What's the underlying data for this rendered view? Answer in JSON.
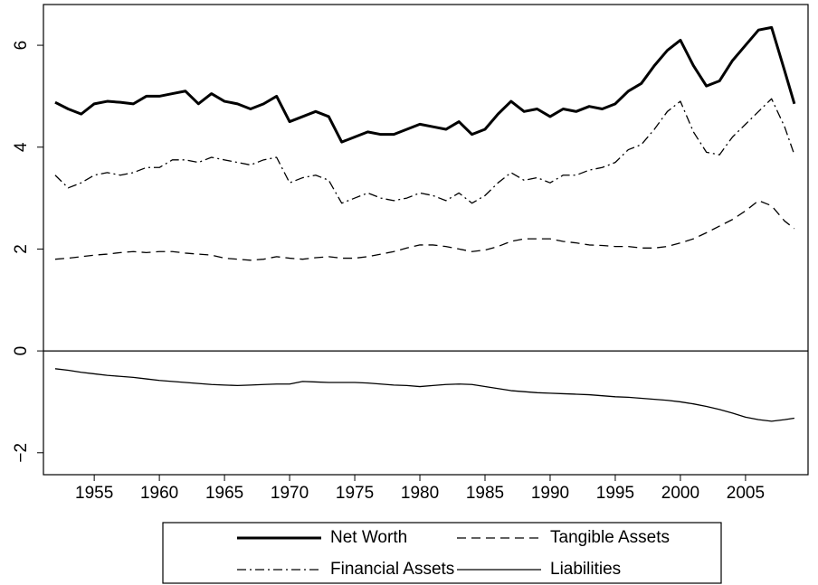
{
  "chart_data": {
    "type": "line",
    "x": [
      1952,
      1953,
      1954,
      1955,
      1956,
      1957,
      1958,
      1959,
      1960,
      1961,
      1962,
      1963,
      1964,
      1965,
      1966,
      1967,
      1968,
      1969,
      1970,
      1971,
      1972,
      1973,
      1974,
      1975,
      1976,
      1977,
      1978,
      1979,
      1980,
      1981,
      1982,
      1983,
      1984,
      1985,
      1986,
      1987,
      1988,
      1989,
      1990,
      1991,
      1992,
      1993,
      1994,
      1995,
      1996,
      1997,
      1998,
      1999,
      2000,
      2001,
      2002,
      2003,
      2004,
      2005,
      2006,
      2007,
      2008,
      2008.75
    ],
    "series": [
      {
        "name": "Net Worth",
        "color": "#000000",
        "dash": "solid",
        "width": 3,
        "values": [
          4.88,
          4.75,
          4.65,
          4.85,
          4.9,
          4.88,
          4.85,
          5.0,
          5.0,
          5.05,
          5.1,
          4.85,
          5.05,
          4.9,
          4.85,
          4.75,
          4.85,
          5.0,
          4.5,
          4.6,
          4.7,
          4.6,
          4.1,
          4.2,
          4.3,
          4.25,
          4.25,
          4.35,
          4.45,
          4.4,
          4.35,
          4.5,
          4.25,
          4.35,
          4.65,
          4.9,
          4.7,
          4.75,
          4.6,
          4.75,
          4.7,
          4.8,
          4.75,
          4.85,
          5.1,
          5.25,
          5.6,
          5.9,
          6.1,
          5.6,
          5.2,
          5.3,
          5.7,
          6.0,
          6.3,
          6.35,
          5.5,
          4.85
        ]
      },
      {
        "name": "Tangible Assets",
        "color": "#000000",
        "dash": "dashed",
        "width": 1.3,
        "values": [
          1.8,
          1.82,
          1.85,
          1.88,
          1.9,
          1.93,
          1.95,
          1.93,
          1.95,
          1.95,
          1.92,
          1.9,
          1.88,
          1.82,
          1.8,
          1.78,
          1.8,
          1.85,
          1.82,
          1.8,
          1.83,
          1.85,
          1.82,
          1.82,
          1.85,
          1.9,
          1.95,
          2.02,
          2.08,
          2.08,
          2.05,
          2.0,
          1.95,
          1.98,
          2.05,
          2.15,
          2.2,
          2.2,
          2.2,
          2.15,
          2.12,
          2.08,
          2.07,
          2.05,
          2.05,
          2.02,
          2.02,
          2.05,
          2.12,
          2.2,
          2.32,
          2.45,
          2.58,
          2.75,
          2.95,
          2.85,
          2.55,
          2.4
        ]
      },
      {
        "name": "Financial Assets",
        "color": "#000000",
        "dash": "dashdot",
        "width": 1.3,
        "values": [
          3.45,
          3.2,
          3.3,
          3.45,
          3.5,
          3.45,
          3.5,
          3.6,
          3.6,
          3.75,
          3.75,
          3.7,
          3.8,
          3.75,
          3.7,
          3.65,
          3.75,
          3.8,
          3.3,
          3.4,
          3.45,
          3.35,
          2.9,
          3.0,
          3.1,
          3.0,
          2.95,
          3.0,
          3.1,
          3.05,
          2.95,
          3.1,
          2.9,
          3.05,
          3.3,
          3.5,
          3.35,
          3.4,
          3.3,
          3.45,
          3.45,
          3.55,
          3.6,
          3.7,
          3.95,
          4.05,
          4.35,
          4.7,
          4.9,
          4.3,
          3.9,
          3.85,
          4.2,
          4.45,
          4.7,
          4.95,
          4.4,
          3.85
        ]
      },
      {
        "name": "Liabilities",
        "color": "#000000",
        "dash": "solid",
        "width": 1.3,
        "values": [
          -0.35,
          -0.38,
          -0.42,
          -0.45,
          -0.48,
          -0.5,
          -0.52,
          -0.55,
          -0.58,
          -0.6,
          -0.62,
          -0.64,
          -0.66,
          -0.67,
          -0.68,
          -0.67,
          -0.66,
          -0.65,
          -0.65,
          -0.6,
          -0.61,
          -0.62,
          -0.62,
          -0.62,
          -0.63,
          -0.65,
          -0.67,
          -0.68,
          -0.7,
          -0.68,
          -0.66,
          -0.65,
          -0.66,
          -0.7,
          -0.74,
          -0.78,
          -0.8,
          -0.82,
          -0.83,
          -0.84,
          -0.85,
          -0.86,
          -0.88,
          -0.9,
          -0.91,
          -0.93,
          -0.95,
          -0.97,
          -1.0,
          -1.04,
          -1.09,
          -1.15,
          -1.22,
          -1.3,
          -1.35,
          -1.38,
          -1.35,
          -1.32
        ]
      }
    ],
    "xlim": [
      1951.1,
      2009.8
    ],
    "xticks": [
      1955,
      1960,
      1965,
      1970,
      1975,
      1980,
      1985,
      1990,
      1995,
      2000,
      2005
    ],
    "ylim": [
      -2.43,
      6.8
    ],
    "yticks": [
      {
        "value": -2,
        "label": "−2"
      },
      0,
      2,
      4,
      6
    ],
    "hline": 0,
    "grid": false,
    "legend": "bottom"
  }
}
